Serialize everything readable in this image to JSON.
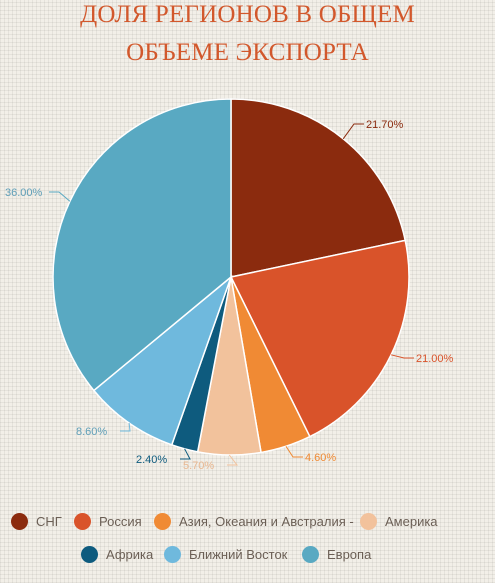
{
  "title_lines": [
    "ДОЛЯ РЕГИОНОВ В ОБЩЕМ",
    "ОБЪЕМЕ ЭКСПОРТА"
  ],
  "title_color": "#d2582c",
  "label_color": "#8a3a22",
  "chart_data": {
    "type": "pie",
    "title": "ДОЛЯ РЕГИОНОВ В ОБЩЕМ ОБЪЕМЕ ЭКСПОРТА",
    "start_angle_deg": 0,
    "direction": "clockwise",
    "slices": [
      {
        "name": "СНГ",
        "value": 21.7,
        "label": "21.70%",
        "color": "#8b2b0e"
      },
      {
        "name": "Россия",
        "value": 21.0,
        "label": "21.00%",
        "color": "#d9532a"
      },
      {
        "name": "Азия, Океания и Австралия -",
        "value": 4.6,
        "label": "4.60%",
        "color": "#f08a34"
      },
      {
        "name": "Америка",
        "value": 5.7,
        "label": "5.70%",
        "color": "#f2c29c"
      },
      {
        "name": "Африка",
        "value": 2.4,
        "label": "2.40%",
        "color": "#0e5b7e"
      },
      {
        "name": "Ближний Восток",
        "value": 8.6,
        "label": "8.60%",
        "color": "#6fb9dd"
      },
      {
        "name": "Европа",
        "value": 36.0,
        "label": "36.00%",
        "color": "#59a9c2"
      }
    ],
    "legend_position": "bottom"
  }
}
